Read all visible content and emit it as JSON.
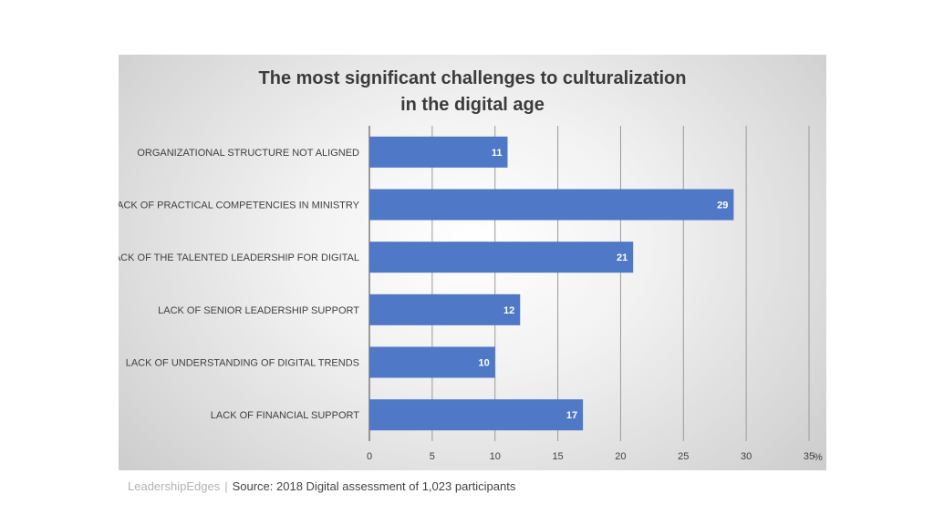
{
  "chart_data": {
    "type": "bar",
    "orientation": "horizontal",
    "title_lines": [
      "The most significant challenges to culturalization",
      "in the digital age"
    ],
    "categories": [
      "ORGANIZATIONAL STRUCTURE NOT ALIGNED",
      "LACK OF PRACTICAL COMPETENCIES IN MINISTRY",
      "LACK OF THE TALENTED LEADERSHIP FOR DIGITAL",
      "LACK OF SENIOR LEADERSHIP SUPPORT",
      "LACK OF UNDERSTANDING OF DIGITAL TRENDS",
      "LACK OF FINANCIAL SUPPORT"
    ],
    "values": [
      11,
      29,
      21,
      12,
      10,
      17
    ],
    "xlim": [
      0,
      35
    ],
    "xticks": [
      "0",
      "5",
      "10",
      "15",
      "20",
      "25",
      "30",
      "35"
    ],
    "unit_label": "%",
    "grid": true,
    "bar_color": "#4f78c7"
  },
  "footer": {
    "brand": "LeadershipEdges",
    "separator": "|",
    "source": "Source: 2018 Digital assessment of 1,023 participants"
  }
}
